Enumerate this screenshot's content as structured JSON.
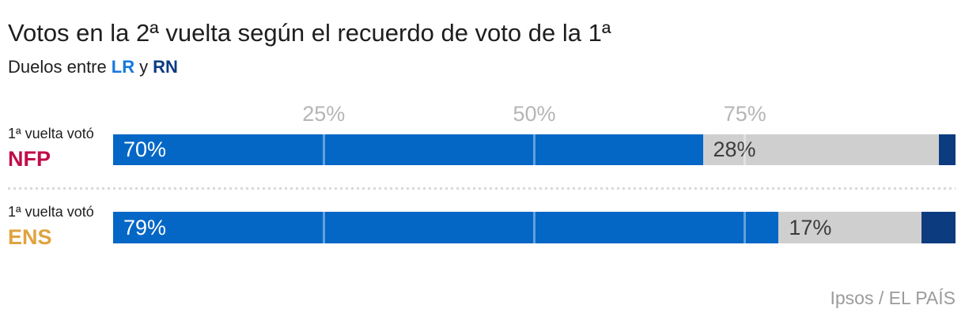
{
  "header": {
    "title": "Votos en la 2ª vuelta según el recuerdo de voto de la 1ª",
    "subtitle_prefix": "Duelos entre",
    "lr_label": "LR",
    "subtitle_connector": "y",
    "rn_label": "RN"
  },
  "colors": {
    "bar_blue": "#0467c6",
    "navy": "#0d3b80",
    "gray": "#cfcfcf",
    "lr_text_blue": "#1478dc",
    "rn_text_navy": "#0d3b80",
    "nfp_red": "#c00d49",
    "ens_gold": "#e0a33f",
    "axis_gray": "#b5b5b5",
    "source_gray": "#9b9b9b"
  },
  "chart_data": {
    "type": "bar",
    "orientation": "horizontal",
    "stacked": true,
    "unit": "%",
    "title": "Votos en la 2ª vuelta según el recuerdo de voto de la 1ª",
    "subtitle": "Duelos entre LR y RN",
    "xlim": [
      0,
      100
    ],
    "x_tick_values": [
      25,
      50,
      75
    ],
    "x_tick_labels": [
      "25%",
      "50%",
      "75%"
    ],
    "grid": true,
    "legend": false,
    "categories": [
      "1ª vuelta votó NFP",
      "1ª vuelta votó ENS"
    ],
    "rows": [
      {
        "label_prefix": "1ª vuelta votó",
        "party": "NFP",
        "party_color": "#c00d49",
        "segments": [
          {
            "name": "LR",
            "value": 70,
            "label": "70%"
          },
          {
            "name": "unlabeled",
            "value": 28,
            "label": "28%"
          },
          {
            "name": "RN",
            "value": 2,
            "label": ""
          }
        ]
      },
      {
        "label_prefix": "1ª vuelta votó",
        "party": "ENS",
        "party_color": "#e0a33f",
        "segments": [
          {
            "name": "LR",
            "value": 79,
            "label": "79%"
          },
          {
            "name": "unlabeled",
            "value": 17,
            "label": "17%"
          },
          {
            "name": "RN",
            "value": 4,
            "label": ""
          }
        ]
      }
    ]
  },
  "source": "Ipsos / EL PAÍS"
}
